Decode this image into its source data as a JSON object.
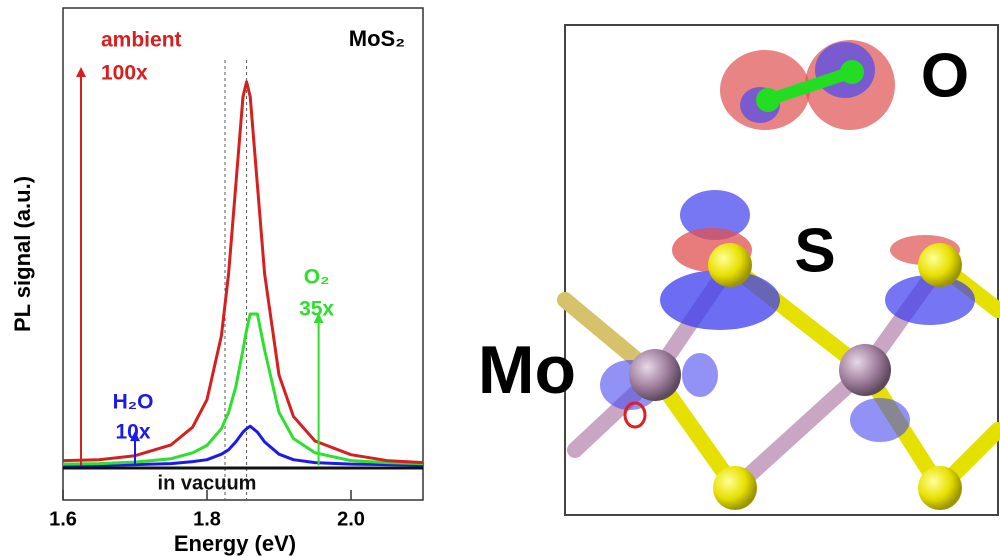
{
  "chart_data": {
    "type": "line",
    "xlabel": "Energy (eV)",
    "ylabel": "PL signal (a.u.)",
    "annotation": "MoS₂",
    "x": [
      1.6,
      1.65,
      1.7,
      1.75,
      1.78,
      1.8,
      1.82,
      1.83,
      1.84,
      1.85,
      1.855,
      1.86,
      1.87,
      1.88,
      1.9,
      1.92,
      1.95,
      2.0,
      2.05,
      2.1
    ],
    "series": [
      {
        "name": "ambient",
        "color": "#d62020",
        "values": [
          8,
          8.2,
          9,
          11.2,
          14.8,
          20.4,
          33.4,
          46,
          64,
          82,
          85,
          82,
          64,
          46,
          25.4,
          17,
          12,
          9.2,
          8,
          7.6
        ]
      },
      {
        "name": "O₂",
        "color": "#2ee02e",
        "values": [
          7.3,
          7.4,
          7.7,
          8.4,
          9.6,
          11.1,
          14.5,
          17.8,
          23,
          30.5,
          34.6,
          37.8,
          37.8,
          30.5,
          17.8,
          12.5,
          9.6,
          8,
          7.6,
          7.4
        ]
      },
      {
        "name": "H₂O",
        "color": "#1a1aee",
        "values": [
          7.1,
          7.1,
          7.2,
          7.4,
          7.8,
          8.2,
          9.3,
          10.2,
          11.8,
          13.8,
          14.5,
          15,
          13.8,
          11.8,
          9.3,
          8.2,
          7.6,
          7.3,
          7.2,
          7.1
        ]
      },
      {
        "name": "in vacuum",
        "color": "#111111",
        "values": [
          6.5,
          6.5,
          6.5,
          6.5,
          6.5,
          6.5,
          6.5,
          6.5,
          6.5,
          6.5,
          6.5,
          6.5,
          6.5,
          6.5,
          6.5,
          6.5,
          6.5,
          6.5,
          6.5,
          6.5
        ]
      }
    ],
    "arrows": [
      {
        "x": 1.625,
        "y_from": 7,
        "y_to": 88,
        "color": "#d62020",
        "label": [
          "ambient",
          "100x"
        ]
      },
      {
        "x": 1.7,
        "y_from": 7,
        "y_to": 14,
        "color": "#1a1aee",
        "label": [
          "H₂O",
          "10x"
        ]
      },
      {
        "x": 1.955,
        "y_from": 7,
        "y_to": 38,
        "color": "#2ee02e",
        "label": [
          "O₂",
          "35x"
        ]
      }
    ],
    "vlines": [
      1.825,
      1.855
    ],
    "xlim": [
      1.6,
      2.1
    ],
    "ylim": [
      0,
      100
    ],
    "xticks": [
      1.6,
      1.8,
      {
        "value": 2,
        "label": "2.0"
      }
    ]
  },
  "structure": {
    "labels": [
      "O",
      "S",
      "Mo"
    ]
  }
}
